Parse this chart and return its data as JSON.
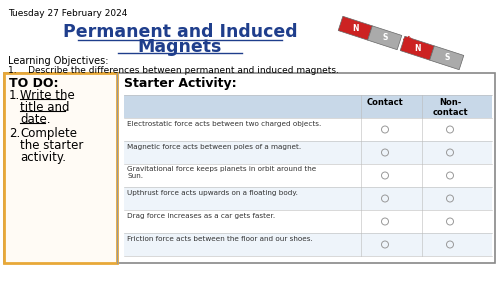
{
  "date_text": "Tuesday 27 February 2024",
  "title_line1": "Permanent and Induced",
  "title_line2": "Magnets",
  "learning_obj_header": "Learning Objectives:",
  "learning_obj_1": "1.    Describe the differences between permanent and induced magnets.",
  "todo_header": "TO DO:",
  "todo_1_num": "1.",
  "todo_1_lines": [
    "Write the",
    "title and",
    "date."
  ],
  "todo_2_num": "2.",
  "todo_2_lines": [
    "Complete",
    "the starter",
    "activity."
  ],
  "starter_header": "Starter Activity:",
  "table_rows": [
    "Electrostatic force acts between two charged objects.",
    "Magnetic force acts between poles of a magnet.",
    "Gravitational force keeps planets in orbit around the Sun.",
    "Upthrust force acts upwards on a floating body.",
    "Drag force increases as a car gets faster.",
    "Friction force acts between the floor and our shoes."
  ],
  "table_row_wraps": [
    [
      "Electrostatic force acts between two charged objects."
    ],
    [
      "Magnetic force acts between poles of a magnet."
    ],
    [
      "Gravitational force keeps planets in orbit around the",
      "Sun."
    ],
    [
      "Upthrust force acts upwards on a floating body."
    ],
    [
      "Drag force increases as a car gets faster."
    ],
    [
      "Friction force acts between the floor and our shoes."
    ]
  ],
  "bg_color": "#ffffff",
  "title_color": "#1F3E8C",
  "date_color": "#000000",
  "table_header_bg": "#C8D8E8",
  "table_row_bg_alt": "#EEF4FA",
  "outer_border_color": "#888888",
  "todo_border_color": "#E8A838",
  "magnet_red": "#CC2222",
  "magnet_gray": "#AAAAAA",
  "magnet_arrow_color": "#CC2222"
}
